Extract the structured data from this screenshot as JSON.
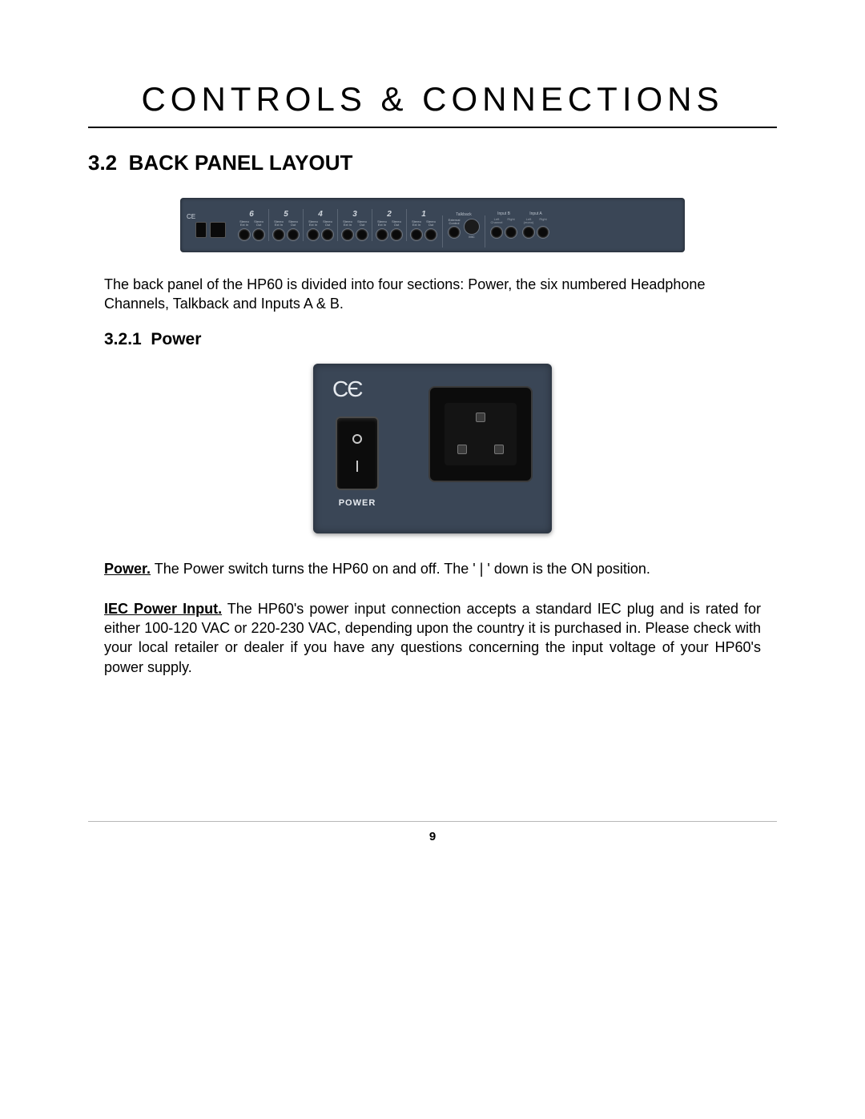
{
  "page": {
    "title": "CONTROLS & CONNECTIONS",
    "section_number": "3.2",
    "section_text": "BACK PANEL LAYOUT",
    "intro_para": "The back panel of the HP60 is divided into four sections:  Power, the six numbered Headphone Channels, Talkback and Inputs A & B.",
    "subsection_number": "3.2.1",
    "subsection_text": "Power",
    "power_label": "Power.",
    "power_para": "  The Power switch turns the HP60 on and off.  The ' | ' down is the ON position.",
    "iec_label": "IEC Power Input.",
    "iec_para": "  The HP60's power input connection accepts a standard IEC plug and is rated for either 100-120 VAC or 220-230 VAC, depending upon the country it is purchased in.  Please check with your local retailer or dealer if you have any questions concerning the input voltage of your HP60's power supply.",
    "page_number": "9"
  },
  "backpanel": {
    "ce_mark": "CE",
    "channels": [
      {
        "num": "6",
        "labels": [
          "Stereo Ext In",
          "Stereo Out"
        ]
      },
      {
        "num": "5",
        "labels": [
          "Stereo Ext In",
          "Stereo Out"
        ]
      },
      {
        "num": "4",
        "labels": [
          "Stereo Ext In",
          "Stereo Out"
        ]
      },
      {
        "num": "3",
        "labels": [
          "Stereo Ext In",
          "Stereo Out"
        ]
      },
      {
        "num": "2",
        "labels": [
          "Stereo Ext In",
          "Stereo Out"
        ]
      },
      {
        "num": "1",
        "labels": [
          "Stereo Ext In",
          "Stereo Out"
        ]
      }
    ],
    "talkback": {
      "title": "Talkback",
      "sub": "External Control",
      "mic": "MIC"
    },
    "inputs": [
      {
        "title": "Input B",
        "subs": [
          "Left Channel",
          "Right"
        ]
      },
      {
        "title": "Input A",
        "subs": [
          "Left (mono)",
          "Right"
        ]
      }
    ]
  },
  "power_closeup": {
    "ce_mark": "CЄ",
    "power_label": "POWER"
  },
  "colors": {
    "panel_bg": "#3a4656",
    "panel_text": "#cfd6de",
    "jack_black": "#0a0a0a",
    "page_bg": "#ffffff",
    "text": "#000000",
    "rule": "#000000",
    "footer_rule": "#b8b8b8"
  },
  "typography": {
    "title_fontsize": 42,
    "title_letter_spacing": 6,
    "section_heading_fontsize": 26,
    "subsection_heading_fontsize": 21,
    "body_fontsize": 18,
    "pagenum_fontsize": 15
  }
}
